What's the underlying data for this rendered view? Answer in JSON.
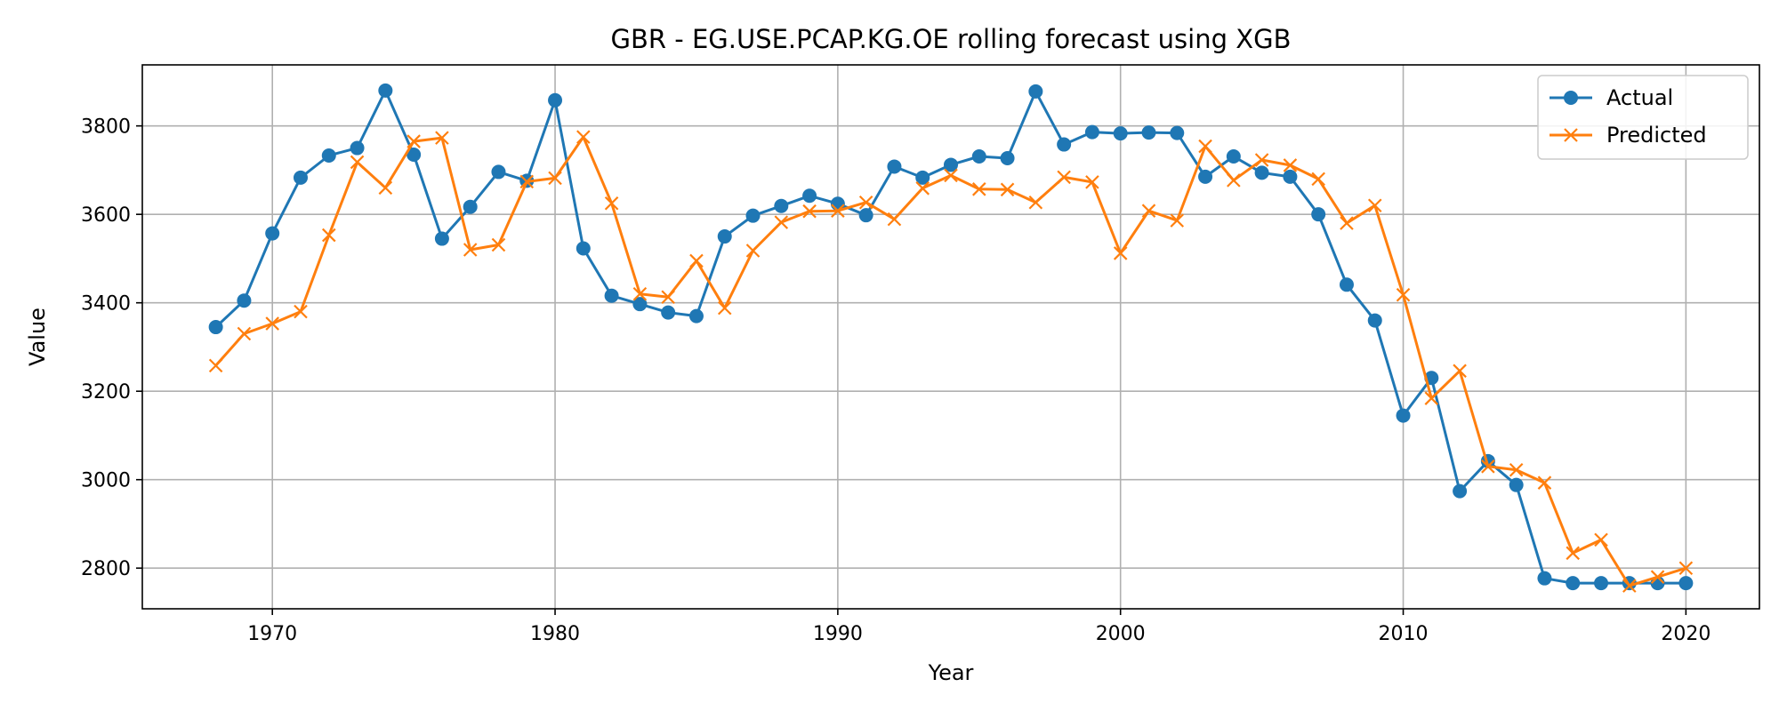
{
  "chart_data": {
    "type": "line",
    "title": "GBR - EG.USE.PCAP.KG.OE rolling forecast using XGB",
    "xlabel": "Year",
    "ylabel": "Value",
    "xlim": [
      1965.4,
      2022.6
    ],
    "ylim": [
      2708,
      3938
    ],
    "xticks": [
      1970,
      1980,
      1990,
      2000,
      2010,
      2020
    ],
    "yticks": [
      2800,
      3000,
      3200,
      3400,
      3600,
      3800
    ],
    "grid": true,
    "legend_position": "top-right",
    "x": [
      1968,
      1969,
      1970,
      1971,
      1972,
      1973,
      1974,
      1975,
      1976,
      1977,
      1978,
      1979,
      1980,
      1981,
      1982,
      1983,
      1984,
      1985,
      1986,
      1987,
      1988,
      1989,
      1990,
      1991,
      1992,
      1993,
      1994,
      1995,
      1996,
      1997,
      1998,
      1999,
      2000,
      2001,
      2002,
      2003,
      2004,
      2005,
      2006,
      2007,
      2008,
      2009,
      2010,
      2011,
      2012,
      2013,
      2014,
      2015,
      2016,
      2017,
      2018,
      2019,
      2020
    ],
    "series": [
      {
        "name": "Actual",
        "color": "#1f77b4",
        "marker": "circle",
        "values": [
          3345,
          3405,
          3557,
          3683,
          3733,
          3750,
          3880,
          3735,
          3545,
          3617,
          3696,
          3676,
          3858,
          3523,
          3416,
          3397,
          3378,
          3370,
          3550,
          3597,
          3619,
          3642,
          3624,
          3598,
          3708,
          3683,
          3712,
          3731,
          3727,
          3878,
          3758,
          3786,
          3783,
          3785,
          3784,
          3685,
          3731,
          3694,
          3685,
          3600,
          3441,
          3360,
          3145,
          3230,
          2974,
          3042,
          2988,
          2777,
          2766,
          2766,
          2766,
          2766,
          2766
        ]
      },
      {
        "name": "Predicted",
        "color": "#ff7f0e",
        "marker": "x",
        "values": [
          3258,
          3330,
          3353,
          3380,
          3553,
          3718,
          3660,
          3765,
          3773,
          3520,
          3531,
          3674,
          3682,
          3775,
          3625,
          3420,
          3413,
          3495,
          3388,
          3518,
          3582,
          3607,
          3608,
          3627,
          3589,
          3659,
          3688,
          3657,
          3656,
          3627,
          3684,
          3673,
          3512,
          3608,
          3586,
          3754,
          3677,
          3723,
          3711,
          3680,
          3580,
          3620,
          3418,
          3184,
          3246,
          3030,
          3022,
          2993,
          2834,
          2864,
          2760,
          2780,
          2800
        ]
      }
    ]
  }
}
